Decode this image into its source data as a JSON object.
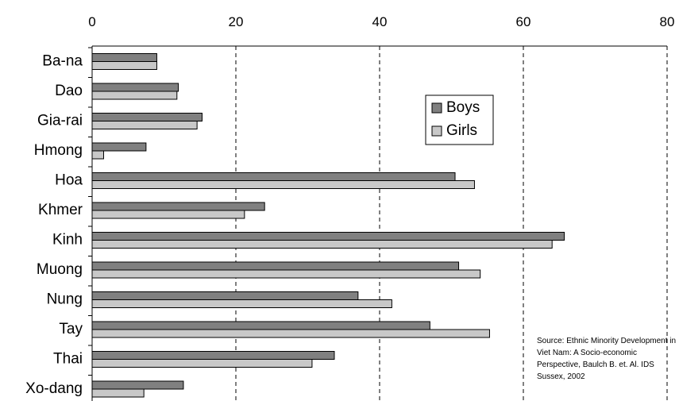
{
  "chart_data": {
    "type": "bar",
    "orientation": "horizontal",
    "categories": [
      "Ba-na",
      "Dao",
      "Gia-rai",
      "Hmong",
      "Hoa",
      "Khmer",
      "Kinh",
      "Muong",
      "Nung",
      "Tay",
      "Thai",
      "Xo-dang"
    ],
    "series": [
      {
        "name": "Boys",
        "color": "#808080",
        "values": [
          9,
          12,
          15.3,
          7.5,
          50.5,
          24,
          65.7,
          51,
          37,
          47,
          33.7,
          12.7
        ]
      },
      {
        "name": "Girls",
        "color": "#c8c8c8",
        "values": [
          9,
          11.8,
          14.6,
          1.6,
          53.2,
          21.2,
          64,
          54,
          41.7,
          55.3,
          30.6,
          7.2
        ]
      }
    ],
    "xlim": [
      0,
      80
    ],
    "xticks": [
      "0",
      "20",
      "40",
      "60",
      "80"
    ],
    "grid": "vertical-dashed",
    "legend_position": "inside-top-right",
    "source": "Source: Ethnic Minority Development in Viet Nam: A Socio-economic Perspective, Baulch B. et. Al. IDS Sussex, 2002"
  }
}
